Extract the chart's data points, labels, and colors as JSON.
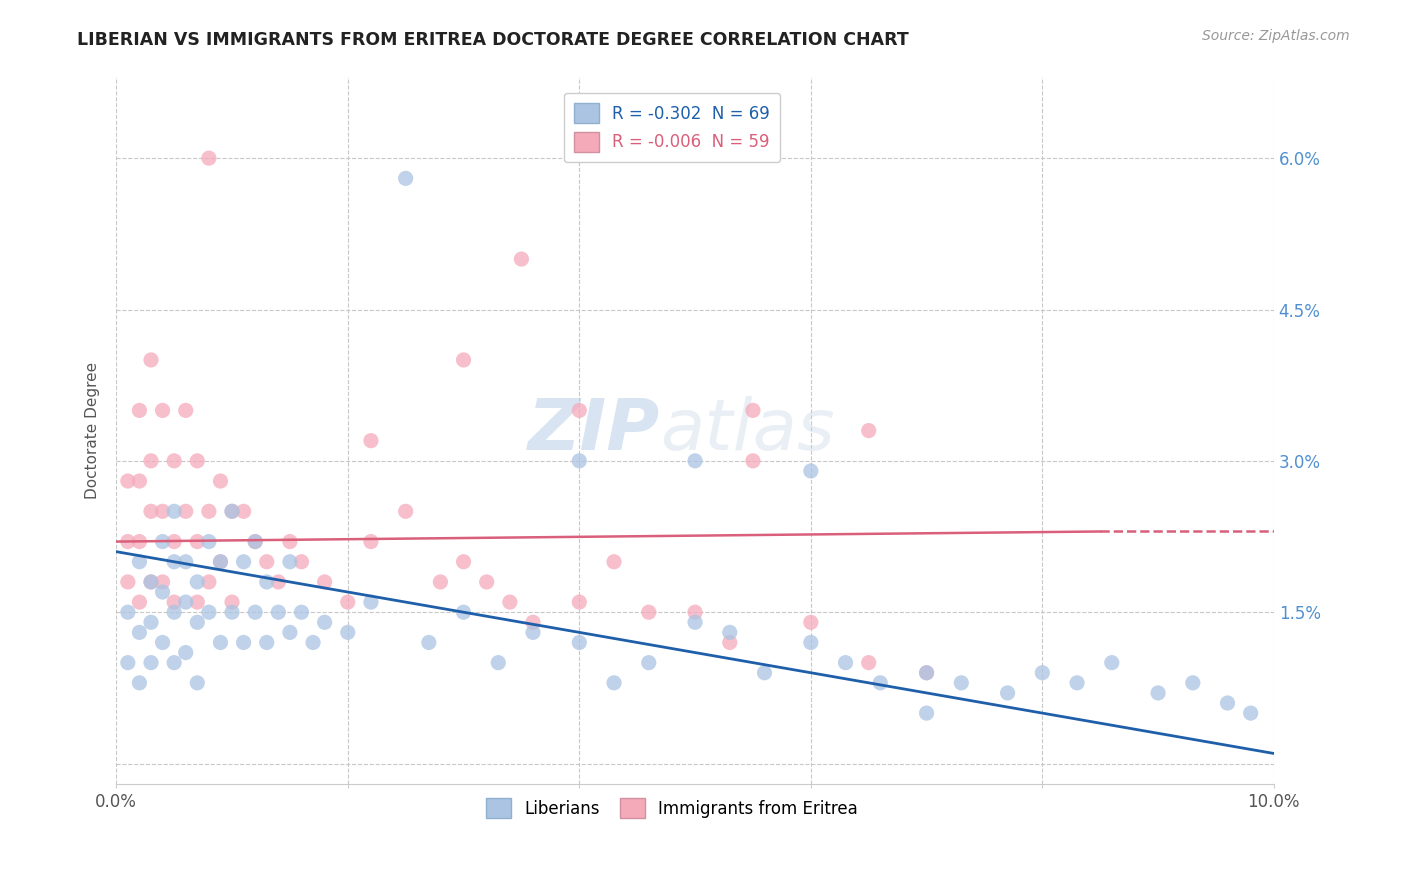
{
  "title": "LIBERIAN VS IMMIGRANTS FROM ERITREA DOCTORATE DEGREE CORRELATION CHART",
  "source": "Source: ZipAtlas.com",
  "ylabel": "Doctorate Degree",
  "xlim": [
    0.0,
    0.1
  ],
  "ylim": [
    -0.002,
    0.068
  ],
  "xticks": [
    0.0,
    0.02,
    0.04,
    0.06,
    0.08,
    0.1
  ],
  "xtick_labels": [
    "0.0%",
    "",
    "",
    "",
    "",
    "10.0%"
  ],
  "yticks": [
    0.0,
    0.015,
    0.03,
    0.045,
    0.06
  ],
  "right_ytick_labels": [
    "",
    "1.5%",
    "3.0%",
    "4.5%",
    "6.0%"
  ],
  "liberian_R": -0.302,
  "liberian_N": 69,
  "eritrea_R": -0.006,
  "eritrea_N": 59,
  "liberian_color": "#aac4e2",
  "eritrea_color": "#f5aaba",
  "liberian_line_color": "#1f5faa",
  "eritrea_line_color": "#d95f7a",
  "background_color": "#ffffff",
  "grid_color": "#c8c8c8",
  "watermark": "ZIPatlas",
  "liberian_x": [
    0.001,
    0.001,
    0.002,
    0.002,
    0.002,
    0.003,
    0.003,
    0.003,
    0.004,
    0.004,
    0.004,
    0.005,
    0.005,
    0.005,
    0.005,
    0.006,
    0.006,
    0.006,
    0.007,
    0.007,
    0.007,
    0.008,
    0.008,
    0.009,
    0.009,
    0.01,
    0.01,
    0.011,
    0.011,
    0.012,
    0.012,
    0.013,
    0.013,
    0.014,
    0.015,
    0.015,
    0.016,
    0.017,
    0.018,
    0.02,
    0.022,
    0.025,
    0.027,
    0.03,
    0.033,
    0.036,
    0.04,
    0.043,
    0.046,
    0.05,
    0.053,
    0.056,
    0.06,
    0.063,
    0.066,
    0.07,
    0.073,
    0.077,
    0.08,
    0.083,
    0.086,
    0.09,
    0.093,
    0.096,
    0.098,
    0.04,
    0.05,
    0.06,
    0.07
  ],
  "liberian_y": [
    0.015,
    0.01,
    0.02,
    0.013,
    0.008,
    0.018,
    0.014,
    0.01,
    0.022,
    0.017,
    0.012,
    0.025,
    0.02,
    0.015,
    0.01,
    0.02,
    0.016,
    0.011,
    0.018,
    0.014,
    0.008,
    0.022,
    0.015,
    0.02,
    0.012,
    0.025,
    0.015,
    0.02,
    0.012,
    0.022,
    0.015,
    0.018,
    0.012,
    0.015,
    0.02,
    0.013,
    0.015,
    0.012,
    0.014,
    0.013,
    0.016,
    0.058,
    0.012,
    0.015,
    0.01,
    0.013,
    0.012,
    0.008,
    0.01,
    0.014,
    0.013,
    0.009,
    0.012,
    0.01,
    0.008,
    0.009,
    0.008,
    0.007,
    0.009,
    0.008,
    0.01,
    0.007,
    0.008,
    0.006,
    0.005,
    0.03,
    0.03,
    0.029,
    0.005
  ],
  "eritrea_x": [
    0.001,
    0.001,
    0.001,
    0.002,
    0.002,
    0.002,
    0.002,
    0.003,
    0.003,
    0.003,
    0.003,
    0.004,
    0.004,
    0.004,
    0.005,
    0.005,
    0.005,
    0.006,
    0.006,
    0.007,
    0.007,
    0.007,
    0.008,
    0.008,
    0.009,
    0.009,
    0.01,
    0.01,
    0.011,
    0.012,
    0.013,
    0.014,
    0.015,
    0.016,
    0.018,
    0.02,
    0.022,
    0.025,
    0.028,
    0.03,
    0.032,
    0.034,
    0.036,
    0.04,
    0.043,
    0.046,
    0.05,
    0.053,
    0.06,
    0.065,
    0.07,
    0.035,
    0.04,
    0.055,
    0.022,
    0.008,
    0.03,
    0.055,
    0.065
  ],
  "eritrea_y": [
    0.028,
    0.022,
    0.018,
    0.035,
    0.028,
    0.022,
    0.016,
    0.04,
    0.03,
    0.025,
    0.018,
    0.035,
    0.025,
    0.018,
    0.03,
    0.022,
    0.016,
    0.035,
    0.025,
    0.03,
    0.022,
    0.016,
    0.025,
    0.018,
    0.028,
    0.02,
    0.025,
    0.016,
    0.025,
    0.022,
    0.02,
    0.018,
    0.022,
    0.02,
    0.018,
    0.016,
    0.022,
    0.025,
    0.018,
    0.02,
    0.018,
    0.016,
    0.014,
    0.016,
    0.02,
    0.015,
    0.015,
    0.012,
    0.014,
    0.01,
    0.009,
    0.05,
    0.035,
    0.035,
    0.032,
    0.06,
    0.04,
    0.03,
    0.033
  ],
  "lib_line_x0": 0.0,
  "lib_line_x1": 0.1,
  "lib_line_y0": 0.021,
  "lib_line_y1": 0.001,
  "eri_line_x0": 0.0,
  "eri_line_x1": 0.085,
  "eri_line_y0": 0.022,
  "eri_line_y1": 0.023,
  "eri_line_dash_x0": 0.085,
  "eri_line_dash_x1": 0.1,
  "eri_line_dash_y0": 0.023,
  "eri_line_dash_y1": 0.023
}
